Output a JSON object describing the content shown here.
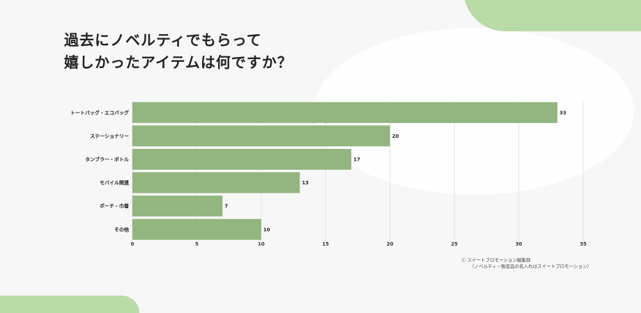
{
  "title_lines": [
    "過去にノベルティでもらって",
    "嬉しかったアイテムは何ですか？"
  ],
  "source_lines": [
    "ⓒ スイートプロモーション編集部",
    "（ノベルティ・販促品の名入れはスイートプロモーション）"
  ],
  "colors": {
    "bar": "#93b580",
    "accent": "#b9dba8"
  },
  "chart_data": {
    "type": "bar",
    "orientation": "horizontal",
    "categories": [
      "トートバッグ・エコバッグ",
      "ステーショナリー",
      "タンブラー・ボトル",
      "モバイル関連",
      "ポーチ・巾着",
      "その他"
    ],
    "values": [
      33,
      20,
      17,
      13,
      7,
      10
    ],
    "xlim": [
      0,
      35
    ],
    "xticks": [
      0,
      5,
      10,
      15,
      20,
      25,
      30,
      35
    ],
    "grid": true,
    "data_labels": true
  }
}
